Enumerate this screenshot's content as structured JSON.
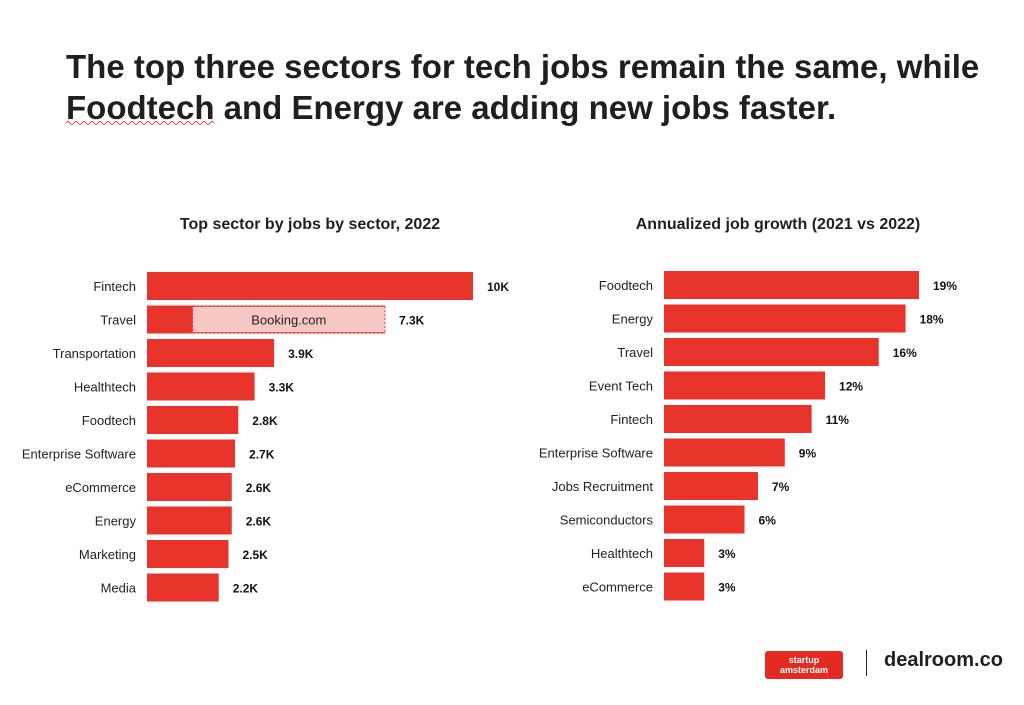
{
  "headline": {
    "line1": "The top three sectors for tech jobs remain the same, while",
    "line2": "Foodtech and Energy are adding new jobs faster."
  },
  "chart_data": [
    {
      "type": "bar",
      "orientation": "horizontal",
      "title": "Top sector by jobs by sector, 2022",
      "categories": [
        "Fintech",
        "Travel",
        "Transportation",
        "Healthtech",
        "Foodtech",
        "Enterprise Software",
        "eCommerce",
        "Energy",
        "Marketing",
        "Media"
      ],
      "values": [
        10,
        7.3,
        3.9,
        3.3,
        2.8,
        2.7,
        2.6,
        2.6,
        2.5,
        2.2
      ],
      "value_labels": [
        "10K",
        "7.3K",
        "3.9K",
        "3.3K",
        "2.8K",
        "2.7K",
        "2.6K",
        "2.6K",
        "2.5K",
        "2.2K"
      ],
      "unit": "thousand jobs",
      "annotation": {
        "category": "Travel",
        "text": "Booking.com",
        "value": 5.9
      },
      "xlim": [
        0,
        10
      ],
      "color": "#e8332a",
      "annotation_fill": "#f8c8c4",
      "annotation_border": "#e8332a"
    },
    {
      "type": "bar",
      "orientation": "horizontal",
      "title": "Annualized job growth  (2021 vs 2022)",
      "categories": [
        "Foodtech",
        "Energy",
        "Travel",
        "Event Tech",
        "Fintech",
        "Enterprise Software",
        "Jobs Recruitment",
        "Semiconductors",
        "Healthtech",
        "eCommerce"
      ],
      "values": [
        19,
        18,
        16,
        12,
        11,
        9,
        7,
        6,
        3,
        3
      ],
      "value_labels": [
        "19%",
        "18%",
        "16%",
        "12%",
        "11%",
        "9%",
        "7%",
        "6%",
        "3%",
        "3%"
      ],
      "unit": "percent",
      "xlim": [
        0,
        19
      ],
      "color": "#e8332a"
    }
  ],
  "logos": {
    "startup_amsterdam_line1": "startup",
    "startup_amsterdam_line2": "amsterdam",
    "dealroom": "dealroom.co"
  }
}
